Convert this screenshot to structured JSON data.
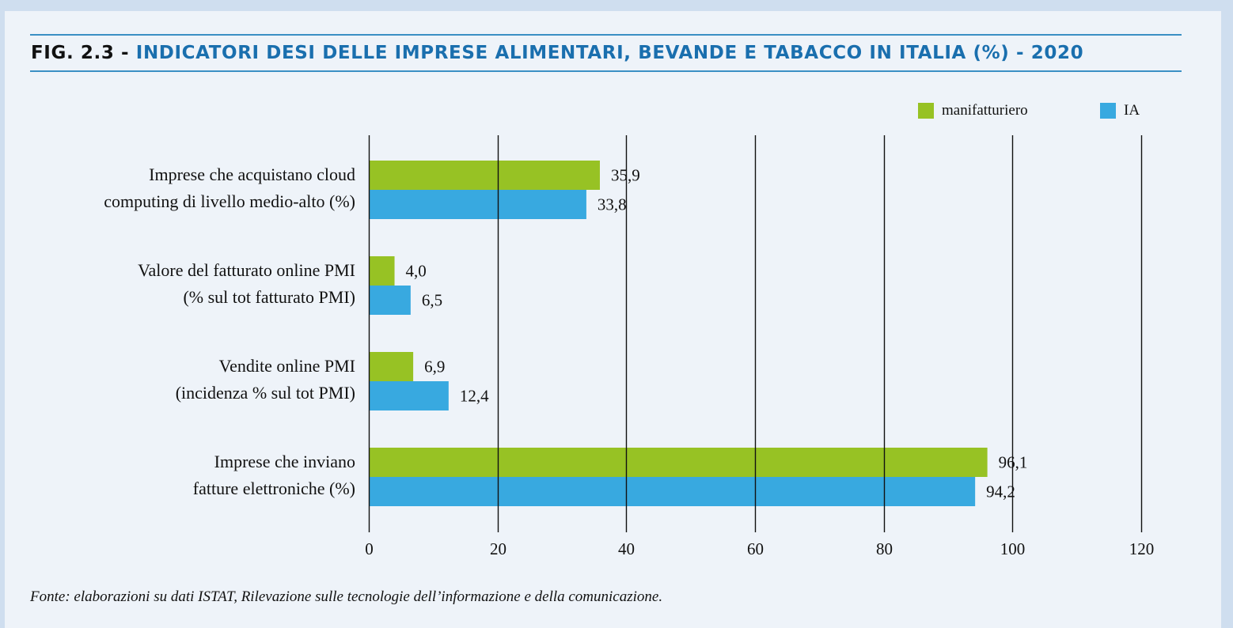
{
  "title": {
    "prefix": "FIG. 2.3 - ",
    "main": "INDICATORI DESI DELLE IMPRESE ALIMENTARI, BEVANDE E TABACCO IN ITALIA (%) - 2020"
  },
  "source": "Fonte: elaborazioni su dati ISTAT, Rilevazione sulle tecnologie dell’informazione e della comunicazione.",
  "colors": {
    "manifatturiero": "#97c224",
    "IA": "#38a9e0",
    "title_accent": "#1a6fae",
    "gridline": "#111111"
  },
  "chart_data": {
    "type": "bar",
    "orientation": "horizontal",
    "title": "INDICATORI DESI DELLE IMPRESE ALIMENTARI, BEVANDE E TABACCO IN ITALIA (%) - 2020",
    "xlabel": "",
    "ylabel": "",
    "xlim": [
      0,
      120
    ],
    "xticks": [
      0,
      20,
      40,
      60,
      80,
      100,
      120
    ],
    "xtick_labels": [
      "0",
      "20",
      "40",
      "60",
      "80",
      "100",
      "120"
    ],
    "grid": true,
    "legend_position": "top-right",
    "categories": [
      [
        "Imprese che acquistano cloud",
        "computing di livello medio-alto (%)"
      ],
      [
        "Valore del fatturato online PMI",
        "(% sul tot fatturato PMI)"
      ],
      [
        "Vendite online PMI",
        "(incidenza % sul tot PMI)"
      ],
      [
        "Imprese che inviano",
        "fatture elettroniche (%)"
      ]
    ],
    "series": [
      {
        "name": "manifatturiero",
        "values": [
          35.9,
          4.0,
          6.9,
          96.1
        ],
        "labels": [
          "35,9",
          "4,0",
          "6,9",
          "96,1"
        ]
      },
      {
        "name": "IA",
        "values": [
          33.8,
          6.5,
          12.4,
          94.2
        ],
        "labels": [
          "33,8",
          "6,5",
          "12,4",
          "94,2"
        ]
      }
    ]
  }
}
